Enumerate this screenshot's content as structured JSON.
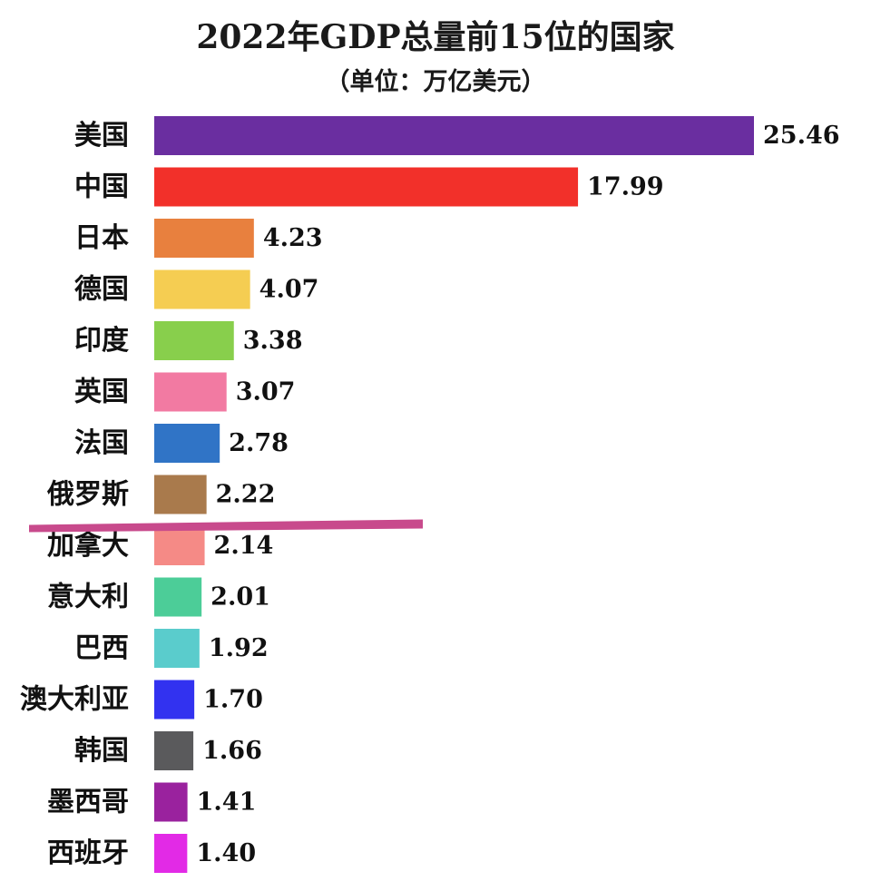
{
  "chart_data": {
    "type": "bar",
    "orientation": "horizontal",
    "title": "2022年GDP总量前15位的国家",
    "subtitle": "（单位：万亿美元）",
    "categories": [
      "美国",
      "中国",
      "日本",
      "德国",
      "印度",
      "英国",
      "法国",
      "俄罗斯",
      "加拿大",
      "意大利",
      "巴西",
      "澳大利亚",
      "韩国",
      "墨西哥",
      "西班牙"
    ],
    "values": [
      25.46,
      17.99,
      4.23,
      4.07,
      3.38,
      3.07,
      2.78,
      2.22,
      2.14,
      2.01,
      1.92,
      1.7,
      1.66,
      1.41,
      1.4
    ],
    "value_labels": [
      "25.46",
      "17.99",
      "4.23",
      "4.07",
      "3.38",
      "3.07",
      "2.78",
      "2.22",
      "2.14",
      "2.01",
      "1.92",
      "1.70",
      "1.66",
      "1.41",
      "1.40"
    ],
    "colors": [
      "#6a2ea0",
      "#f2302a",
      "#e8803e",
      "#f5cd52",
      "#88cf4c",
      "#f27aa2",
      "#3074c6",
      "#a97a4c",
      "#f58a86",
      "#4ccd98",
      "#5acccc",
      "#3232f0",
      "#5a5a5c",
      "#9a229e",
      "#e22ae6"
    ],
    "xlim": [
      0,
      25.46
    ],
    "grid": false,
    "legend": "none",
    "annotation": {
      "type": "underline-stroke",
      "color": "#c84a8c",
      "below_category": "俄罗斯"
    }
  }
}
